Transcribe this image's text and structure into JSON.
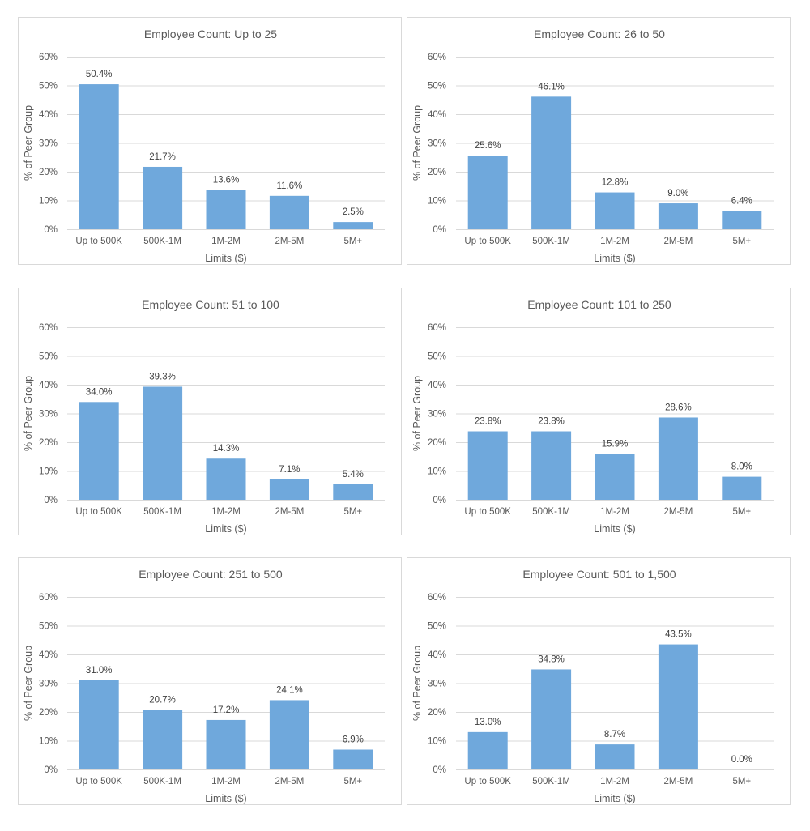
{
  "chart_data": [
    {
      "type": "bar",
      "title": "Employee Count: Up to 25",
      "xlabel": "Limits ($)",
      "ylabel": "% of Peer Group",
      "categories": [
        "Up to 500K",
        "500K-1M",
        "1M-2M",
        "2M-5M",
        "5M+"
      ],
      "values": [
        50.4,
        21.7,
        13.6,
        11.6,
        2.5
      ],
      "data_labels": [
        "50.4%",
        "21.7%",
        "13.6%",
        "11.6%",
        "2.5%"
      ],
      "ylim": [
        0,
        60
      ],
      "yticks": [
        "0%",
        "10%",
        "20%",
        "30%",
        "40%",
        "50%",
        "60%"
      ],
      "grid": true,
      "bar_color": "#6FA8DC"
    },
    {
      "type": "bar",
      "title": "Employee Count: 26 to 50",
      "xlabel": "Limits ($)",
      "ylabel": "% of Peer Group",
      "categories": [
        "Up to 500K",
        "500K-1M",
        "1M-2M",
        "2M-5M",
        "5M+"
      ],
      "values": [
        25.6,
        46.1,
        12.8,
        9.0,
        6.4
      ],
      "data_labels": [
        "25.6%",
        "46.1%",
        "12.8%",
        "9.0%",
        "6.4%"
      ],
      "ylim": [
        0,
        60
      ],
      "yticks": [
        "0%",
        "10%",
        "20%",
        "30%",
        "40%",
        "50%",
        "60%"
      ],
      "grid": true,
      "bar_color": "#6FA8DC"
    },
    {
      "type": "bar",
      "title": "Employee Count: 51 to 100",
      "xlabel": "Limits ($)",
      "ylabel": "% of Peer Group",
      "categories": [
        "Up to 500K",
        "500K-1M",
        "1M-2M",
        "2M-5M",
        "5M+"
      ],
      "values": [
        34.0,
        39.3,
        14.3,
        7.1,
        5.4
      ],
      "data_labels": [
        "34.0%",
        "39.3%",
        "14.3%",
        "7.1%",
        "5.4%"
      ],
      "ylim": [
        0,
        60
      ],
      "yticks": [
        "0%",
        "10%",
        "20%",
        "30%",
        "40%",
        "50%",
        "60%"
      ],
      "grid": true,
      "bar_color": "#6FA8DC"
    },
    {
      "type": "bar",
      "title": "Employee Count: 101 to 250",
      "xlabel": "Limits ($)",
      "ylabel": "% of Peer Group",
      "categories": [
        "Up to 500K",
        "500K-1M",
        "1M-2M",
        "2M-5M",
        "5M+"
      ],
      "values": [
        23.8,
        23.8,
        15.9,
        28.6,
        8.0
      ],
      "data_labels": [
        "23.8%",
        "23.8%",
        "15.9%",
        "28.6%",
        "8.0%"
      ],
      "ylim": [
        0,
        60
      ],
      "yticks": [
        "0%",
        "10%",
        "20%",
        "30%",
        "40%",
        "50%",
        "60%"
      ],
      "grid": true,
      "bar_color": "#6FA8DC"
    },
    {
      "type": "bar",
      "title": "Employee Count: 251 to 500",
      "xlabel": "Limits ($)",
      "ylabel": "% of Peer Group",
      "categories": [
        "Up to 500K",
        "500K-1M",
        "1M-2M",
        "2M-5M",
        "5M+"
      ],
      "values": [
        31.0,
        20.7,
        17.2,
        24.1,
        6.9
      ],
      "data_labels": [
        "31.0%",
        "20.7%",
        "17.2%",
        "24.1%",
        "6.9%"
      ],
      "ylim": [
        0,
        60
      ],
      "yticks": [
        "0%",
        "10%",
        "20%",
        "30%",
        "40%",
        "50%",
        "60%"
      ],
      "grid": true,
      "bar_color": "#6FA8DC"
    },
    {
      "type": "bar",
      "title": "Employee Count: 501 to 1,500",
      "xlabel": "Limits ($)",
      "ylabel": "% of Peer Group",
      "categories": [
        "Up to 500K",
        "500K-1M",
        "1M-2M",
        "2M-5M",
        "5M+"
      ],
      "values": [
        13.0,
        34.8,
        8.7,
        43.5,
        0.0
      ],
      "data_labels": [
        "13.0%",
        "34.8%",
        "8.7%",
        "43.5%",
        "0.0%"
      ],
      "ylim": [
        0,
        60
      ],
      "yticks": [
        "0%",
        "10%",
        "20%",
        "30%",
        "40%",
        "50%",
        "60%"
      ],
      "grid": true,
      "bar_color": "#6FA8DC"
    }
  ]
}
